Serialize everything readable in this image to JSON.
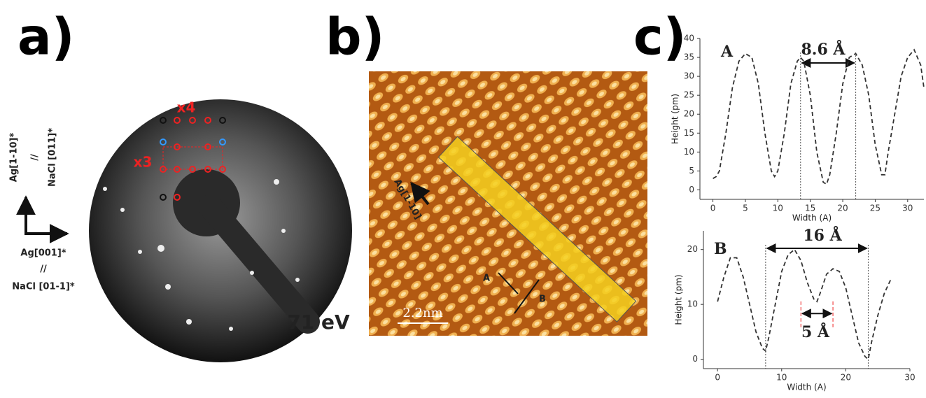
{
  "panel_a": {
    "label": "a)",
    "x4": "x4",
    "x3": "x3",
    "vertical_axis": [
      "Ag[1-10]*",
      "//",
      "NaCl [011]*"
    ],
    "horizontal_axis": [
      "Ag[001]*",
      "//",
      "NaCl [01-1]*"
    ],
    "energy": "71 eV"
  },
  "panel_b": {
    "label": "b)",
    "direction": "Ag[1-10]",
    "line_a": "A",
    "line_b": "B",
    "scale": "2.2nm"
  },
  "panel_c": {
    "label": "c)"
  },
  "chart_data": [
    {
      "type": "line",
      "title": "A",
      "annotation": "8.6 Å",
      "x_label": "Width (A)",
      "y_label": "Height (pm)",
      "x": [
        0,
        0.5,
        1,
        2,
        3,
        4,
        5,
        6,
        7,
        8,
        9,
        9.5,
        10,
        11,
        12,
        13,
        13.5,
        14,
        15,
        16,
        17,
        17.5,
        18,
        19,
        20,
        21,
        22,
        23,
        24,
        25,
        26,
        26.5,
        27,
        28,
        29,
        30,
        31,
        32,
        32.5
      ],
      "values": [
        3,
        3.5,
        5,
        15,
        27,
        34,
        36,
        35,
        28,
        15,
        5,
        3.5,
        5,
        15,
        28,
        34,
        35,
        34,
        25,
        10,
        2,
        1.5,
        4,
        15,
        28,
        35,
        36,
        33,
        25,
        12,
        4,
        4,
        10,
        20,
        30,
        35,
        37,
        33,
        27
      ],
      "color": "#333333",
      "vlines": [
        13.5,
        22
      ],
      "xlim": [
        -2,
        32.5
      ],
      "xticks": [
        0,
        5,
        10,
        15,
        20,
        25,
        30
      ],
      "ylim": [
        -2.5,
        40
      ],
      "yticks": [
        0,
        5,
        10,
        15,
        20,
        25,
        30,
        35,
        40
      ]
    },
    {
      "type": "line",
      "title": "B",
      "annotation": "16 Å",
      "annotation_2": "5 Å",
      "x_label": "Width (A)",
      "y_label": "Height (pm)",
      "x": [
        0,
        1,
        2,
        3,
        4,
        5,
        6,
        7,
        7.5,
        8,
        9,
        10,
        11,
        12,
        13,
        14,
        15,
        15.5,
        16,
        17,
        18,
        19,
        20,
        21,
        22,
        23,
        23.5,
        24,
        25,
        26,
        27
      ],
      "values": [
        10.5,
        15,
        18.5,
        18.5,
        15,
        10,
        5,
        2,
        1.5,
        4,
        10,
        16,
        19,
        20,
        18,
        14,
        11,
        10.5,
        12,
        15.5,
        16.5,
        16,
        13,
        8,
        3,
        0.5,
        0,
        3,
        8,
        12,
        14.5
      ],
      "color": "#333333",
      "vlines": [
        7.5,
        23.5
      ],
      "red_vlines": [
        13,
        18
      ],
      "xlim": [
        -2.2,
        30
      ],
      "xticks": [
        0,
        10,
        20,
        30
      ],
      "ylim": [
        -1.7,
        23.4
      ],
      "yticks": [
        0,
        10,
        20
      ]
    }
  ]
}
